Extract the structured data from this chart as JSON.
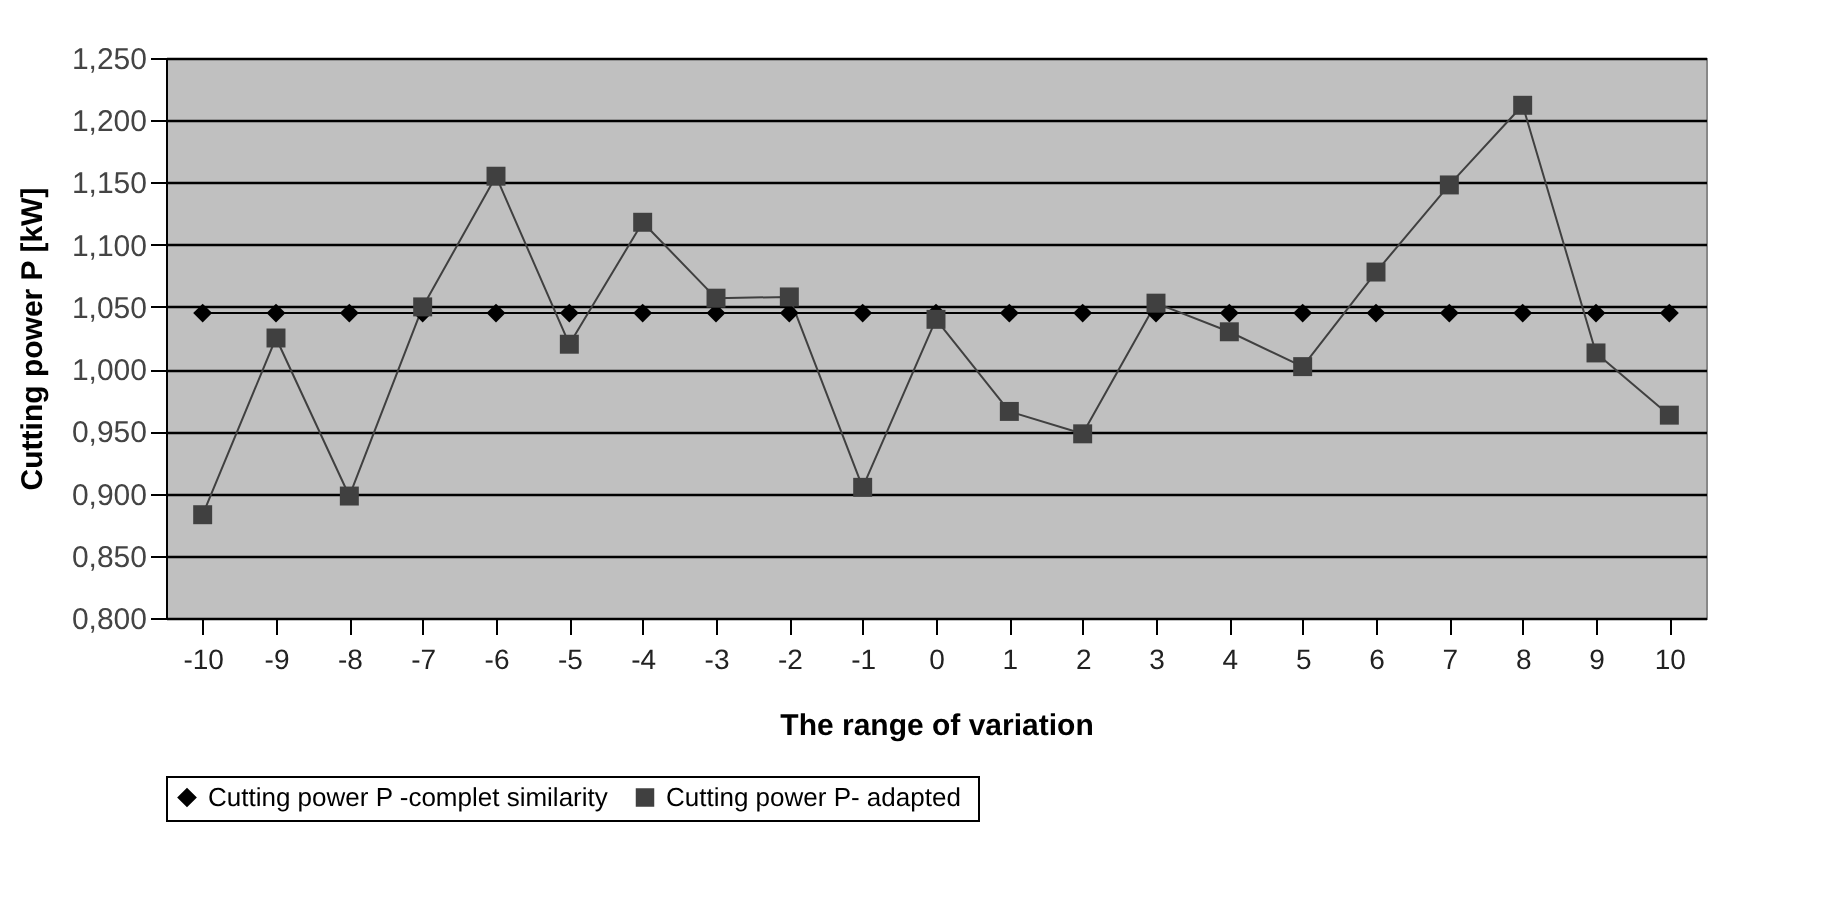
{
  "chart_data": {
    "type": "line",
    "xlabel": "The range of variation",
    "ylabel": "Cutting power  P [kW]",
    "categories": [
      "-10",
      "-9",
      "-8",
      "-7",
      "-6",
      "-5",
      "-4",
      "-3",
      "-2",
      "-1",
      "0",
      "1",
      "2",
      "3",
      "4",
      "5",
      "6",
      "7",
      "8",
      "9",
      "10"
    ],
    "series": [
      {
        "name": "Cutting power P -complet similarity",
        "color": "#000000",
        "marker": "diamond",
        "values": [
          1.045,
          1.045,
          1.045,
          1.045,
          1.045,
          1.045,
          1.045,
          1.045,
          1.045,
          1.045,
          1.045,
          1.045,
          1.045,
          1.045,
          1.045,
          1.045,
          1.045,
          1.045,
          1.045,
          1.045,
          1.045
        ]
      },
      {
        "name": "Cutting power  P- adapted",
        "color": "#404040",
        "marker": "square",
        "values": [
          0.883,
          1.025,
          0.898,
          1.05,
          1.155,
          1.02,
          1.118,
          1.057,
          1.058,
          0.905,
          1.04,
          0.966,
          0.948,
          1.053,
          1.03,
          1.002,
          1.078,
          1.148,
          1.212,
          1.013,
          0.963
        ]
      }
    ],
    "ylim": [
      0.8,
      1.25
    ],
    "yticks": [
      {
        "value": 0.8,
        "label": "0,800"
      },
      {
        "value": 0.85,
        "label": "0,850"
      },
      {
        "value": 0.9,
        "label": "0,900"
      },
      {
        "value": 0.95,
        "label": "0,950"
      },
      {
        "value": 1.0,
        "label": "1,000"
      },
      {
        "value": 1.05,
        "label": "1,050"
      },
      {
        "value": 1.1,
        "label": "1,100"
      },
      {
        "value": 1.15,
        "label": "1,150"
      },
      {
        "value": 1.2,
        "label": "1,200"
      },
      {
        "value": 1.25,
        "label": "1,250"
      }
    ],
    "grid": "y",
    "legend": "bottom",
    "line_style": "solid"
  }
}
